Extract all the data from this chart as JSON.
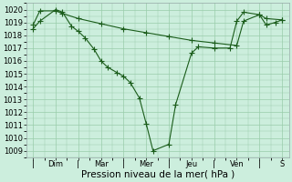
{
  "bg_color": "#cceedd",
  "plot_bg_color": "#cceedd",
  "grid_color": "#99ccaa",
  "line_color": "#1a5c1a",
  "marker_color": "#1a5c1a",
  "ylim": [
    1008.5,
    1020.5
  ],
  "yticks": [
    1009,
    1010,
    1011,
    1012,
    1013,
    1014,
    1015,
    1016,
    1017,
    1018,
    1019,
    1020
  ],
  "xlabel": "Pression niveau de la mer( hPa )",
  "xlabel_fontsize": 7.5,
  "tick_fontsize": 6,
  "xtick_labels": [
    "|",
    "Dim",
    "|",
    "Mar",
    "|",
    "Mer",
    "|",
    "Jeu",
    "|",
    "Ven",
    "|",
    "S"
  ],
  "xtick_positions": [
    0,
    1,
    2,
    3,
    4,
    5,
    6,
    7,
    8,
    9,
    10,
    11
  ],
  "line1_x": [
    0.0,
    0.3,
    1.0,
    1.3,
    1.7,
    2.0,
    2.3,
    2.7,
    3.0,
    3.3,
    3.7,
    4.0,
    4.3,
    4.7,
    5.0,
    5.3,
    6.0,
    6.3,
    7.0,
    7.3,
    8.0,
    8.7,
    9.0,
    9.3,
    10.0,
    10.3,
    10.7,
    11.0
  ],
  "line1_y": [
    1018.5,
    1019.1,
    1020.0,
    1019.8,
    1018.7,
    1018.3,
    1017.8,
    1016.9,
    1016.0,
    1015.5,
    1015.1,
    1014.8,
    1014.3,
    1013.1,
    1011.1,
    1009.0,
    1009.5,
    1012.6,
    1016.6,
    1017.1,
    1017.0,
    1017.0,
    1019.1,
    1019.8,
    1019.6,
    1018.8,
    1019.0,
    1019.2
  ],
  "line2_x": [
    0.0,
    0.3,
    1.0,
    1.3,
    2.0,
    3.0,
    4.0,
    5.0,
    6.0,
    7.0,
    8.0,
    9.0,
    9.3,
    10.0,
    10.3,
    11.0
  ],
  "line2_y": [
    1018.8,
    1019.9,
    1019.9,
    1019.7,
    1019.3,
    1018.9,
    1018.5,
    1018.2,
    1017.9,
    1017.6,
    1017.4,
    1017.2,
    1019.1,
    1019.6,
    1019.3,
    1019.2
  ]
}
